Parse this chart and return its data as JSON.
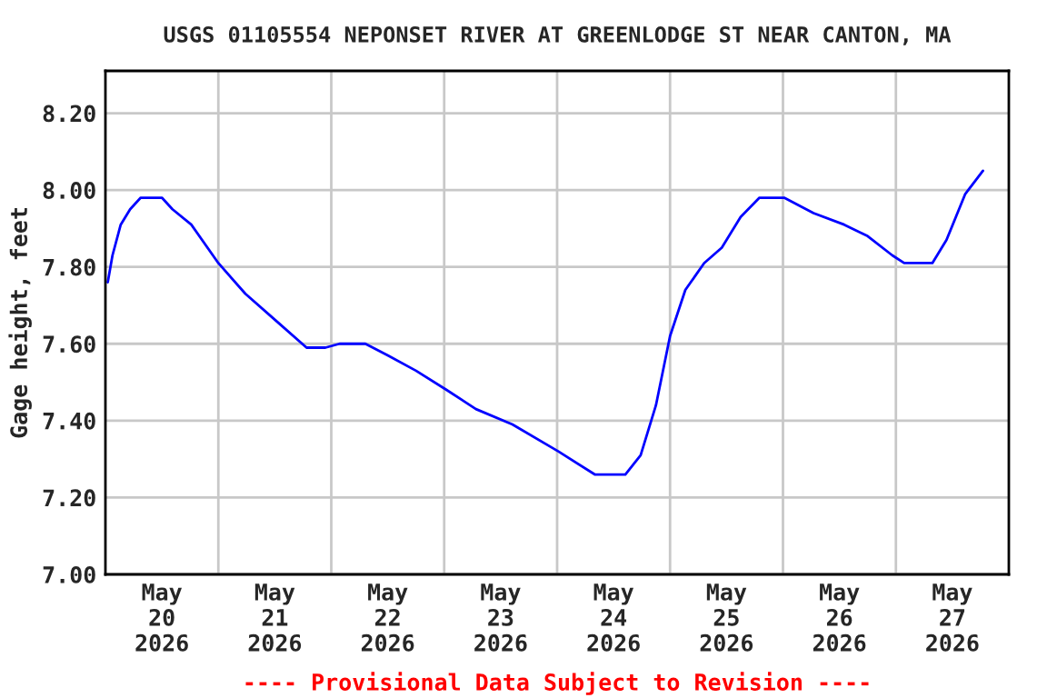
{
  "chart_data": {
    "type": "line",
    "title": "USGS 01105554 NEPONSET RIVER AT GREENLODGE ST NEAR CANTON, MA",
    "ylabel": "Gage height, feet",
    "x": [
      "2026-05-20T00:30",
      "2026-05-20T01:30",
      "2026-05-20T03:15",
      "2026-05-20T05:15",
      "2026-05-20T07:30",
      "2026-05-20T12:00",
      "2026-05-20T14:15",
      "2026-05-20T18:15",
      "2026-05-21T00:00",
      "2026-05-21T05:45",
      "2026-05-21T12:15",
      "2026-05-21T18:45",
      "2026-05-21T22:45",
      "2026-05-22T01:45",
      "2026-05-22T07:15",
      "2026-05-22T12:00",
      "2026-05-22T18:00",
      "2026-05-23T00:30",
      "2026-05-23T06:45",
      "2026-05-23T14:30",
      "2026-05-24T00:15",
      "2026-05-24T08:00",
      "2026-05-24T14:30",
      "2026-05-24T17:45",
      "2026-05-24T21:00",
      "2026-05-25T00:00",
      "2026-05-25T03:15",
      "2026-05-25T07:15",
      "2026-05-25T11:00",
      "2026-05-25T15:00",
      "2026-05-25T19:00",
      "2026-05-26T00:15",
      "2026-05-26T06:30",
      "2026-05-26T13:00",
      "2026-05-26T18:00",
      "2026-05-26T23:15",
      "2026-05-27T01:45",
      "2026-05-27T07:45",
      "2026-05-27T10:45",
      "2026-05-27T14:45",
      "2026-05-27T18:30"
    ],
    "series": [
      {
        "color": "#0000ff",
        "values": [
          7.76,
          7.83,
          7.91,
          7.95,
          7.98,
          7.98,
          7.95,
          7.91,
          7.81,
          7.73,
          7.66,
          7.59,
          7.59,
          7.6,
          7.6,
          7.57,
          7.53,
          7.48,
          7.43,
          7.39,
          7.32,
          7.26,
          7.26,
          7.31,
          7.44,
          7.62,
          7.74,
          7.81,
          7.85,
          7.93,
          7.98,
          7.98,
          7.94,
          7.91,
          7.88,
          7.83,
          7.81,
          7.81,
          7.87,
          7.99,
          8.05
        ]
      }
    ],
    "xlim": [
      "2026-05-20T00:00",
      "2026-05-28T00:00"
    ],
    "xticks": [
      {
        "value": "2026-05-20T12:00",
        "label": "May\n20\n2026"
      },
      {
        "value": "2026-05-21T00:00",
        "label": null
      },
      {
        "value": "2026-05-21T12:00",
        "label": "May\n21\n2026"
      },
      {
        "value": "2026-05-22T00:00",
        "label": null
      },
      {
        "value": "2026-05-22T12:00",
        "label": "May\n22\n2026"
      },
      {
        "value": "2026-05-23T00:00",
        "label": null
      },
      {
        "value": "2026-05-23T12:00",
        "label": "May\n23\n2026"
      },
      {
        "value": "2026-05-24T00:00",
        "label": null
      },
      {
        "value": "2026-05-24T12:00",
        "label": "May\n24\n2026"
      },
      {
        "value": "2026-05-25T00:00",
        "label": null
      },
      {
        "value": "2026-05-25T12:00",
        "label": "May\n25\n2026"
      },
      {
        "value": "2026-05-26T00:00",
        "label": null
      },
      {
        "value": "2026-05-26T12:00",
        "label": "May\n26\n2026"
      },
      {
        "value": "2026-05-27T00:00",
        "label": null
      },
      {
        "value": "2026-05-27T12:00",
        "label": "May\n27\n2026"
      }
    ],
    "ylim": [
      7.0,
      8.31
    ],
    "yticks": [
      {
        "value": 7.0,
        "label": "7.00"
      },
      {
        "value": 7.2,
        "label": "7.20"
      },
      {
        "value": 7.4,
        "label": "7.40"
      },
      {
        "value": 7.6,
        "label": "7.60"
      },
      {
        "value": 7.8,
        "label": "7.80"
      },
      {
        "value": 8.0,
        "label": "8.00"
      },
      {
        "value": 8.2,
        "label": "8.20"
      }
    ],
    "grid": true,
    "annotations": [
      "---- Provisional Data Subject to Revision ----"
    ]
  }
}
